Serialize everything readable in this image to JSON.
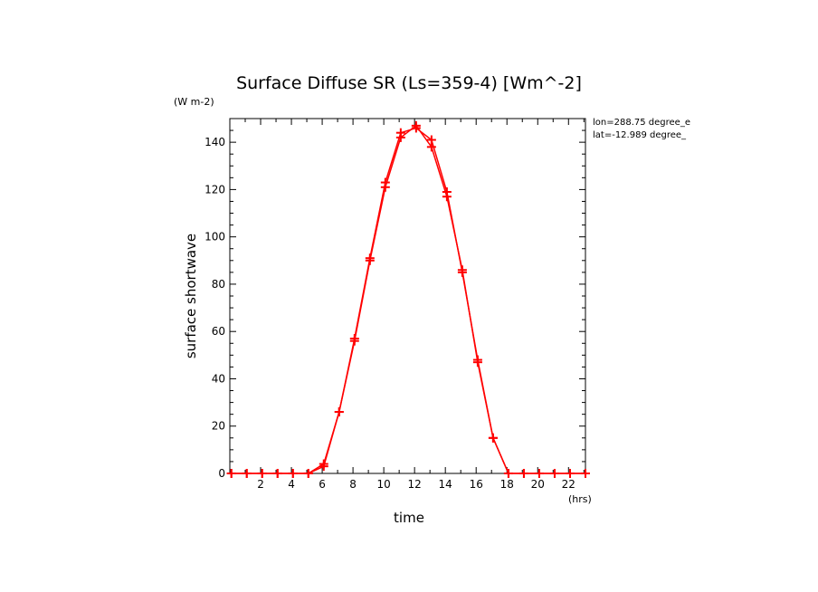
{
  "chart_data": {
    "type": "line",
    "title": "Surface Diffuse SR (Ls=359-4) [Wm^-2]",
    "y_units": "(W m-2)",
    "xlabel": "time",
    "x_units": "(hrs)",
    "ylabel": "surface shortwave",
    "location": {
      "lon": "lon=288.75 degree_e",
      "lat": "lat=-12.989 degree_"
    },
    "xlim": [
      0,
      23.1
    ],
    "ylim": [
      0,
      150
    ],
    "x_ticks": [
      "2",
      "4",
      "6",
      "8",
      "10",
      "12",
      "14",
      "16",
      "18",
      "20",
      "22"
    ],
    "y_ticks": [
      "0",
      "20",
      "40",
      "60",
      "80",
      "100",
      "120",
      "140"
    ],
    "grid": false,
    "line_color": "#ff0000",
    "series": [
      {
        "x": [
          0.1,
          1.1,
          2.1,
          3.1,
          4.1,
          5.1,
          6.1,
          7.1,
          8.1,
          9.1,
          10.1,
          11.1,
          12.1,
          13.1,
          14.1,
          15.1,
          16.1,
          17.1,
          18.1,
          19.1,
          20.1,
          21.1,
          22.1,
          23.1
        ],
        "y": [
          0,
          0,
          0,
          0,
          0,
          0,
          3,
          26,
          56,
          90,
          121,
          142,
          147,
          138,
          117,
          86,
          47,
          15,
          0,
          0,
          0,
          0,
          0,
          0
        ],
        "y_alt": [
          0,
          0,
          0,
          0,
          0,
          0,
          4,
          26,
          57,
          91,
          123,
          144,
          146,
          141,
          119,
          85,
          48,
          15,
          0,
          0,
          0,
          0,
          0,
          0
        ]
      }
    ]
  }
}
